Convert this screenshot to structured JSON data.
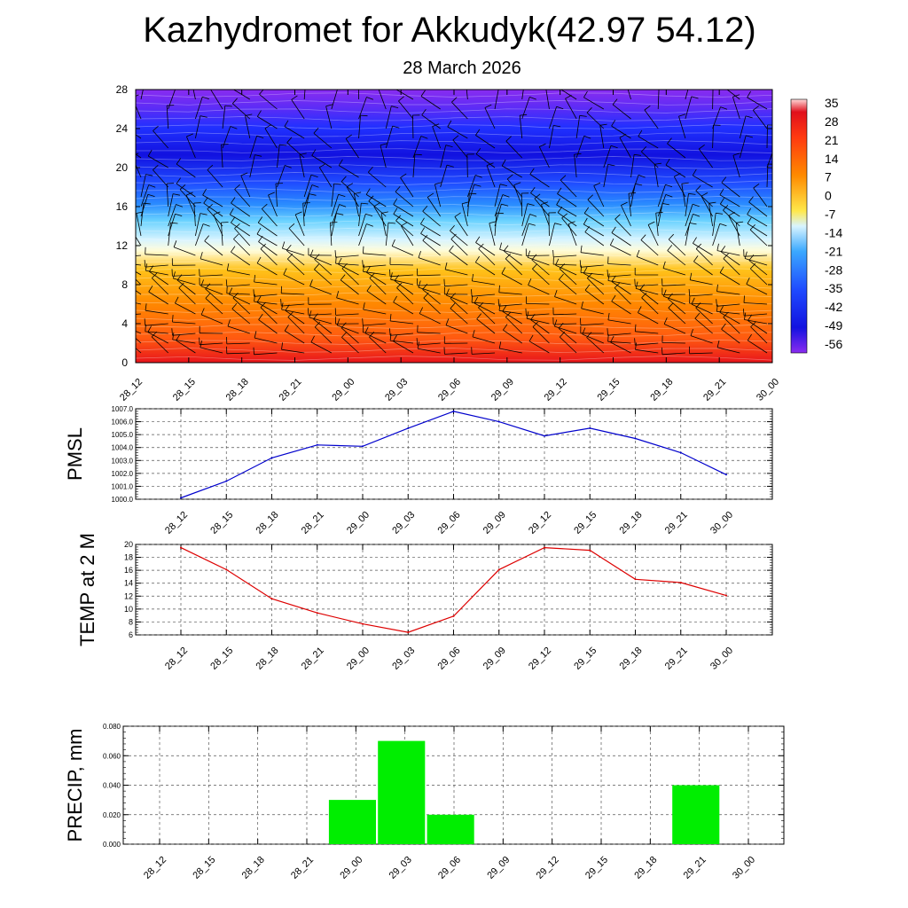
{
  "title": "Kazhydromet for Akkudyk(42.97 54.12)",
  "subtitle": "28 March 2026",
  "chart_data": [
    {
      "type": "heatmap",
      "name": "temperature-height-section",
      "x": [
        "28_12",
        "28_15",
        "28_18",
        "28_21",
        "29_00",
        "29_03",
        "29_06",
        "29_09",
        "29_12",
        "29_15",
        "29_18",
        "29_21",
        "30_00"
      ],
      "ylim": [
        0,
        28
      ],
      "yticks": [
        "0",
        "4",
        "8",
        "12",
        "16",
        "20",
        "24",
        "28"
      ],
      "colorbar_labels": [
        "35",
        "28",
        "21",
        "14",
        "7",
        "0",
        "-7",
        "-14",
        "-21",
        "-28",
        "-35",
        "-42",
        "-49",
        "-56"
      ],
      "colors": {
        "hot": "#e8141c",
        "orange": "#ff8a00",
        "yellow": "#ffe84a",
        "pale": "#fffcd8",
        "lightblue": "#6ad2ff",
        "blue": "#1f4bff",
        "deepblue": "#1212e0",
        "violet": "#8a2cf0"
      },
      "wind_barbs": true
    },
    {
      "type": "line",
      "name": "pmsl",
      "ylabel": "PMSL",
      "x": [
        "28_12",
        "28_15",
        "28_18",
        "28_21",
        "29_00",
        "29_03",
        "29_06",
        "29_09",
        "29_12",
        "29_15",
        "29_18",
        "29_21",
        "30_00"
      ],
      "values": [
        1000.1,
        1001.4,
        1003.2,
        1004.2,
        1004.1,
        1005.5,
        1006.8,
        1006.0,
        1004.9,
        1005.5,
        1004.7,
        1003.6,
        1001.9
      ],
      "ylim": [
        1000.0,
        1007.0
      ],
      "yticks": [
        "1000.0",
        "1001.0",
        "1002.0",
        "1003.0",
        "1004.0",
        "1005.0",
        "1006.0",
        "1007.0"
      ],
      "color": "#0000cc",
      "grid": true
    },
    {
      "type": "line",
      "name": "temp2m",
      "ylabel": "TEMP at 2 M",
      "x": [
        "28_12",
        "28_15",
        "28_18",
        "28_21",
        "29_00",
        "29_03",
        "29_06",
        "29_09",
        "29_12",
        "29_15",
        "29_18",
        "29_21",
        "30_00"
      ],
      "values": [
        19.5,
        16.1,
        11.6,
        9.4,
        7.7,
        6.4,
        8.9,
        16.1,
        19.5,
        19.1,
        14.6,
        14.1,
        12.1
      ],
      "ylim": [
        6,
        20
      ],
      "yticks": [
        "6",
        "8",
        "10",
        "12",
        "14",
        "16",
        "18",
        "20"
      ],
      "color": "#dd0000",
      "grid": true
    },
    {
      "type": "bar",
      "name": "precip",
      "ylabel": "PRECIP, mm",
      "categories": [
        "28_12",
        "28_15",
        "28_18",
        "28_21",
        "29_00",
        "29_03",
        "29_06",
        "29_09",
        "29_12",
        "29_15",
        "29_18",
        "29_21",
        "30_00"
      ],
      "values": [
        0,
        0,
        0,
        0,
        0.03,
        0.07,
        0.02,
        0,
        0,
        0,
        0,
        0.04,
        0
      ],
      "ylim": [
        0,
        0.08
      ],
      "yticks": [
        "0.000",
        "0.020",
        "0.040",
        "0.060",
        "0.080"
      ],
      "color": "#00ee00",
      "grid": true
    }
  ]
}
